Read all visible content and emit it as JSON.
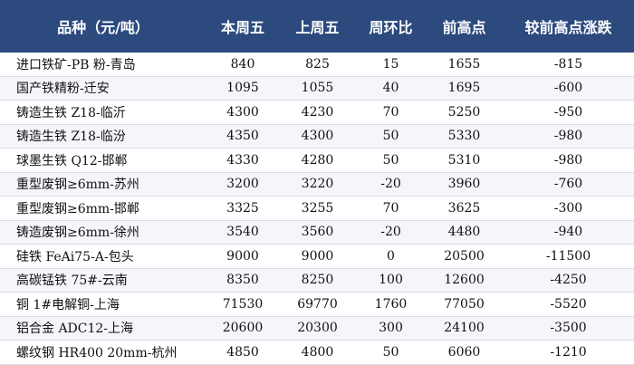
{
  "table": {
    "header": [
      "品种（元/吨）",
      "本周五",
      "上周五",
      "周环比",
      "前高点",
      "较前高点涨跌"
    ],
    "rows": [
      [
        "进口铁矿-PB 粉-青岛",
        840,
        825,
        15,
        1655,
        -815
      ],
      [
        "国产铁精粉-迁安",
        1095,
        1055,
        40,
        1695,
        -600
      ],
      [
        "铸造生铁 Z18-临沂",
        4300,
        4230,
        70,
        5250,
        -950
      ],
      [
        "铸造生铁 Z18-临汾",
        4350,
        4300,
        50,
        5330,
        -980
      ],
      [
        "球墨生铁 Q12-邯郸",
        4330,
        4280,
        50,
        5310,
        -980
      ],
      [
        "重型废钢≥6mm-苏州",
        3200,
        3220,
        -20,
        3960,
        -760
      ],
      [
        "重型废钢≥6mm-邯郸",
        3325,
        3255,
        70,
        3625,
        -300
      ],
      [
        "铸造废钢≥6mm-徐州",
        3540,
        3560,
        -20,
        4480,
        -940
      ],
      [
        "硅铁 FeAi75-A-包头",
        9000,
        9000,
        0,
        20500,
        -11500
      ],
      [
        "高碳锰铁 75#-云南",
        8350,
        8250,
        100,
        12600,
        -4250
      ],
      [
        "铜 1#电解铜-上海",
        71530,
        69770,
        1760,
        77050,
        -5520
      ],
      [
        "铝合金 ADC12-上海",
        20600,
        20300,
        300,
        24100,
        -3500
      ],
      [
        "螺纹钢 HR400 20mm-杭州",
        4850,
        4800,
        50,
        6060,
        -1210
      ]
    ]
  }
}
